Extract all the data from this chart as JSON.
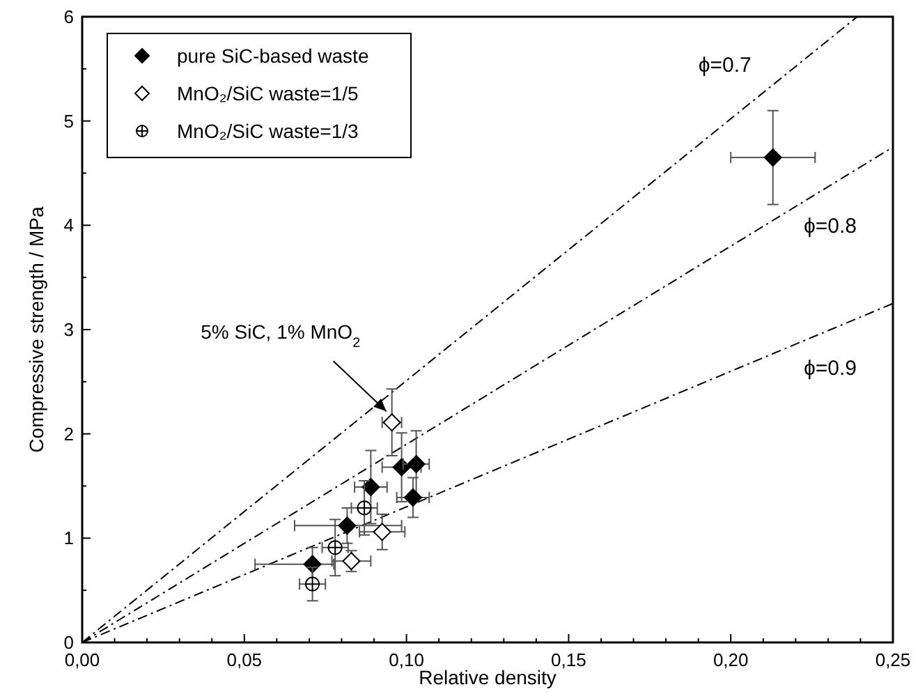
{
  "chart_data": {
    "type": "scatter",
    "xlabel": "Relative density",
    "ylabel": "Compressive strength / MPa",
    "xlim": [
      0,
      0.25
    ],
    "ylim": [
      0,
      6
    ],
    "xticks": [
      {
        "value": 0,
        "label": "0,00"
      },
      {
        "value": 0.01,
        "label": null
      },
      {
        "value": 0.02,
        "label": null
      },
      {
        "value": 0.03,
        "label": null
      },
      {
        "value": 0.04,
        "label": null
      },
      {
        "value": 0.05,
        "label": "0,05"
      },
      {
        "value": 0.06,
        "label": null
      },
      {
        "value": 0.07,
        "label": null
      },
      {
        "value": 0.08,
        "label": null
      },
      {
        "value": 0.09,
        "label": null
      },
      {
        "value": 0.1,
        "label": "0,10"
      },
      {
        "value": 0.11,
        "label": null
      },
      {
        "value": 0.12,
        "label": null
      },
      {
        "value": 0.13,
        "label": null
      },
      {
        "value": 0.14,
        "label": null
      },
      {
        "value": 0.15,
        "label": "0,15"
      },
      {
        "value": 0.16,
        "label": null
      },
      {
        "value": 0.17,
        "label": null
      },
      {
        "value": 0.18,
        "label": null
      },
      {
        "value": 0.19,
        "label": null
      },
      {
        "value": 0.2,
        "label": "0,20"
      },
      {
        "value": 0.21,
        "label": null
      },
      {
        "value": 0.22,
        "label": null
      },
      {
        "value": 0.23,
        "label": null
      },
      {
        "value": 0.24,
        "label": null
      },
      {
        "value": 0.25,
        "label": "0,25"
      }
    ],
    "yticks": [
      0,
      {
        "value": 0.5,
        "label": null
      },
      1,
      {
        "value": 1.5,
        "label": null
      },
      2,
      {
        "value": 2.5,
        "label": null
      },
      3,
      {
        "value": 3.5,
        "label": null
      },
      4,
      {
        "value": 4.5,
        "label": null
      },
      5,
      {
        "value": 5.5,
        "label": null
      },
      6
    ],
    "legend": "top left",
    "grid": false,
    "series": [
      {
        "name": "pure SiC-based waste",
        "marker": "diamond",
        "color": "#000000",
        "x": [
          0.071,
          0.0817,
          0.089,
          0.0985,
          0.103,
          0.102,
          0.213
        ],
        "values": [
          0.75,
          1.12,
          1.49,
          1.68,
          1.71,
          1.39,
          4.65
        ],
        "errors": [
          0.16,
          0.17,
          0.35,
          0.33,
          0.32,
          0.19,
          0.45
        ],
        "xerrors": [
          [
            0.0533,
            0.0776
          ],
          [
            0.0655,
            0.0985
          ],
          0.005,
          0.006,
          0.004,
          0.005,
          0.013
        ]
      },
      {
        "name": "MnO₂/SiC waste=1/5",
        "marker": "diamond-open",
        "color": "#000000",
        "x": [
          0.0955,
          0.083,
          0.0925
        ],
        "values": [
          2.11,
          0.78,
          1.06
        ],
        "errors": [
          0.32,
          0.1,
          0.17
        ],
        "xerrors": [
          0.003,
          0.006,
          0.007
        ]
      },
      {
        "name": "MnO₂/SiC waste=1/3",
        "marker": "cross",
        "color": "#000000",
        "x": [
          0.071,
          0.078,
          0.087
        ],
        "values": [
          0.56,
          0.91,
          1.29
        ],
        "errors": [
          0.16,
          0.27,
          0.26
        ],
        "xerrors": [
          0.004,
          0.004,
          0.004
        ]
      },
      {
        "name": "ϕ=0.7",
        "type": "line",
        "line_style": "dashed",
        "color": "#000000",
        "x": [
          0,
          0.239
        ],
        "values": [
          0,
          6
        ]
      },
      {
        "name": "ϕ=0.8",
        "type": "line",
        "line_style": "dashed",
        "color": "#000000",
        "x": [
          0,
          0.25
        ],
        "values": [
          0,
          4.75
        ]
      },
      {
        "name": "ϕ=0.9",
        "type": "line",
        "line_style": "dashed",
        "color": "#000000",
        "x": [
          0,
          0.25
        ],
        "values": [
          0,
          3.25
        ]
      }
    ],
    "annotations": [
      {
        "text": "5% SiC, 1% MnO$_{2}$",
        "x": 0.0955,
        "y": 2.11
      }
    ]
  }
}
